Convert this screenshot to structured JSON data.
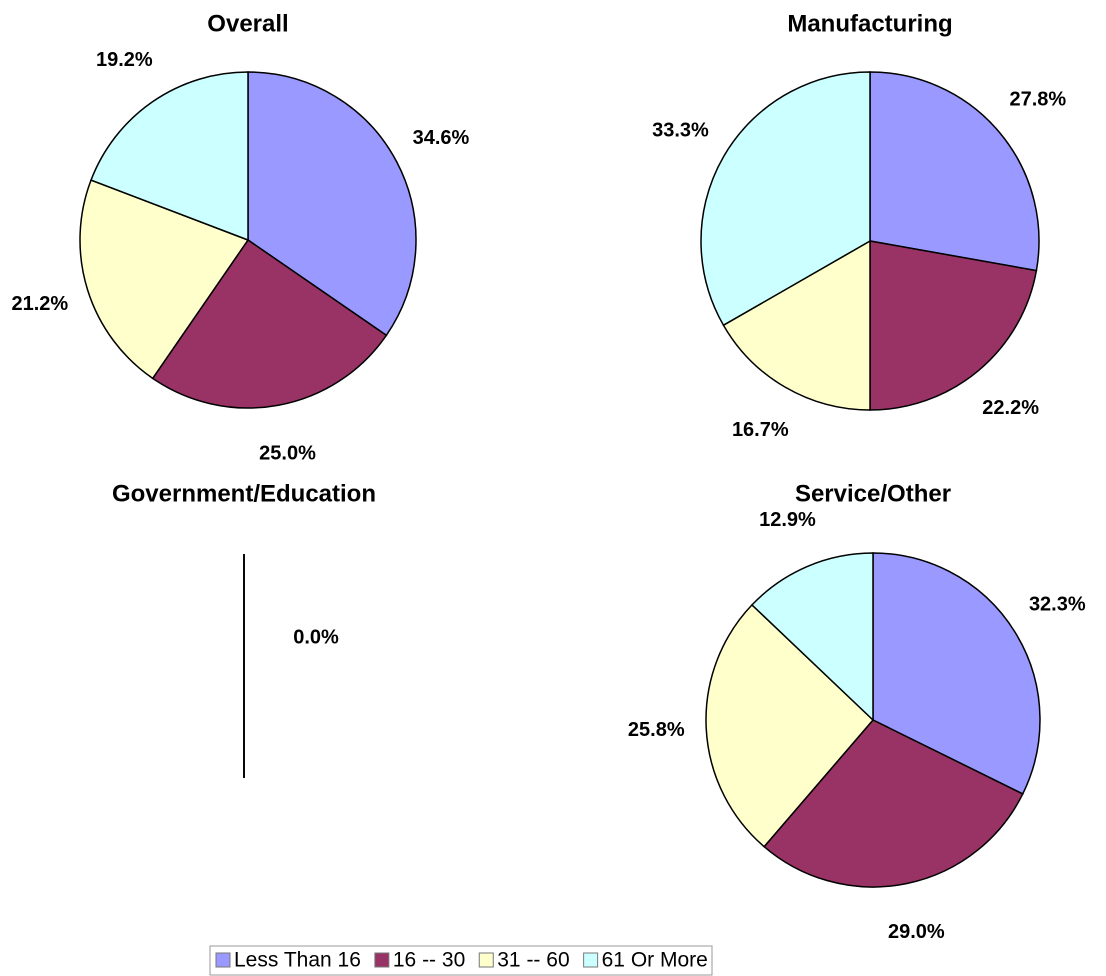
{
  "chart_data": [
    {
      "type": "pie",
      "title": "Overall",
      "categories": [
        "Less Than 16",
        "16 -- 30",
        "31 -- 60",
        "61 Or More"
      ],
      "values": [
        34.6,
        25.0,
        21.2,
        19.2
      ],
      "value_labels": [
        "34.6%",
        "25.0%",
        "21.2%",
        "19.2%"
      ],
      "colors": [
        "#9999ff",
        "#993366",
        "#ffffcc",
        "#ccffff"
      ]
    },
    {
      "type": "pie",
      "title": "Manufacturing",
      "categories": [
        "Less Than 16",
        "16 -- 30",
        "31 -- 60",
        "61 Or More"
      ],
      "values": [
        27.8,
        22.2,
        16.7,
        33.3
      ],
      "value_labels": [
        "27.8%",
        "22.2%",
        "16.7%",
        "33.3%"
      ],
      "colors": [
        "#9999ff",
        "#993366",
        "#ffffcc",
        "#ccffff"
      ]
    },
    {
      "type": "pie",
      "title": "Government/Education",
      "categories": [
        "Less Than 16",
        "16 -- 30",
        "31 -- 60",
        "61 Or More"
      ],
      "values": [
        0,
        0,
        0,
        0
      ],
      "value_labels": [
        "0.0%",
        null,
        null,
        null
      ],
      "colors": [
        "#9999ff",
        "#993366",
        "#ffffcc",
        "#ccffff"
      ]
    },
    {
      "type": "pie",
      "title": "Service/Other",
      "categories": [
        "Less Than 16",
        "16 -- 30",
        "31 -- 60",
        "61 Or More"
      ],
      "values": [
        32.3,
        29.0,
        25.8,
        12.9
      ],
      "value_labels": [
        "32.3%",
        "29.0%",
        "25.8%",
        "12.9%"
      ],
      "colors": [
        "#9999ff",
        "#993366",
        "#ffffcc",
        "#ccffff"
      ]
    }
  ]
}
